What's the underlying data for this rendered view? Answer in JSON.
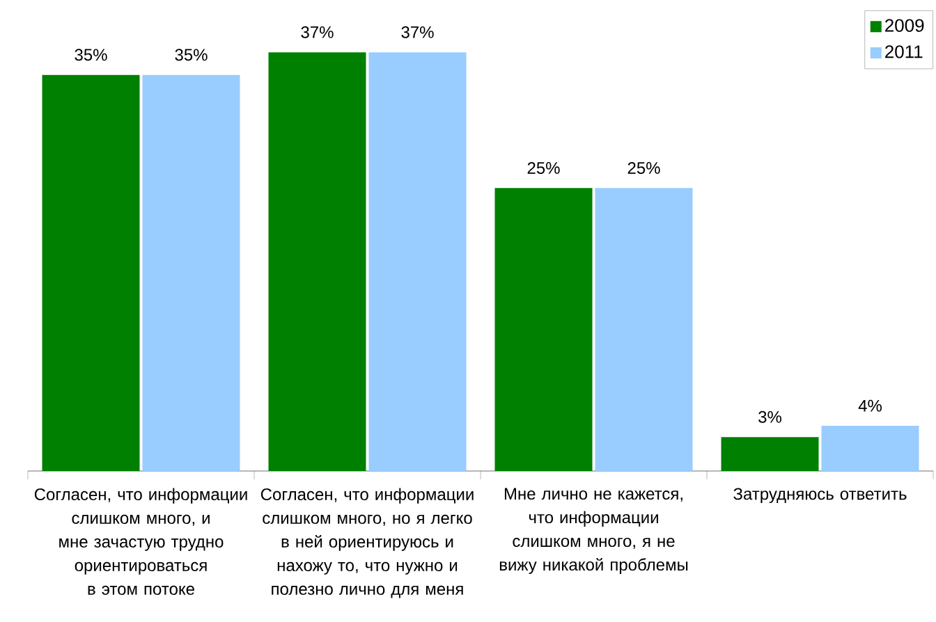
{
  "chart_data": {
    "type": "bar",
    "categories": [
      "Согласен, что информации слишком много, и мне зачастую трудно ориентироваться в этом потоке",
      "Согласен, что информации слишком много, но я легко в ней ориентируюсь и нахожу то, что нужно и полезно лично для меня",
      "Мне лично не кажется, что информации слишком много, я не вижу никакой проблемы",
      "Затрудняюсь ответить"
    ],
    "series": [
      {
        "name": "2009",
        "color": "#008000",
        "values": [
          35,
          37,
          25,
          3
        ],
        "value_labels": [
          "35%",
          "37%",
          "25%",
          "3%"
        ]
      },
      {
        "name": "2011",
        "color": "#99ccff",
        "values": [
          35,
          37,
          25,
          4
        ],
        "value_labels": [
          "35%",
          "37%",
          "25%",
          "4%"
        ]
      }
    ],
    "legend": "top right"
  }
}
